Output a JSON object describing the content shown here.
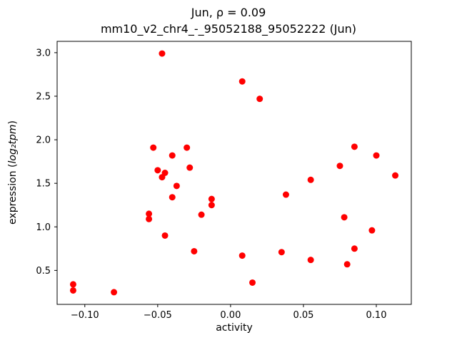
{
  "chart_data": {
    "type": "scatter",
    "title": "Jun, ρ = 0.09",
    "subtitle": "mm10_v2_chr4_-_95052188_95052222 (Jun)",
    "xlabel": "activity",
    "ylabel_prefix": "expression (",
    "ylabel_math": "log₂tpm",
    "ylabel_suffix": ")",
    "marker_color": "#ff0000",
    "xlim": [
      -0.119,
      0.124
    ],
    "ylim": [
      0.11,
      3.13
    ],
    "xticks": [
      -0.1,
      -0.05,
      0.0,
      0.05,
      0.1
    ],
    "xtick_labels": [
      "−0.10",
      "−0.05",
      "0.00",
      "0.05",
      "0.10"
    ],
    "yticks": [
      0.5,
      1.0,
      1.5,
      2.0,
      2.5,
      3.0
    ],
    "ytick_labels": [
      "0.5",
      "1.0",
      "1.5",
      "2.0",
      "2.5",
      "3.0"
    ],
    "x": [
      -0.108,
      -0.108,
      -0.08,
      -0.056,
      -0.056,
      -0.053,
      -0.05,
      -0.047,
      -0.047,
      -0.045,
      -0.045,
      -0.04,
      -0.04,
      -0.037,
      -0.03,
      -0.028,
      -0.025,
      -0.02,
      -0.013,
      -0.013,
      0.008,
      0.008,
      0.015,
      0.02,
      0.035,
      0.038,
      0.055,
      0.055,
      0.075,
      0.078,
      0.08,
      0.085,
      0.085,
      0.097,
      0.1,
      0.113
    ],
    "y": [
      0.34,
      0.27,
      0.25,
      1.15,
      1.09,
      1.91,
      1.65,
      2.99,
      1.57,
      1.62,
      0.9,
      1.82,
      1.34,
      1.47,
      1.91,
      1.68,
      0.72,
      1.14,
      1.32,
      1.25,
      2.67,
      0.67,
      0.36,
      2.47,
      0.71,
      1.37,
      1.54,
      0.62,
      1.7,
      1.11,
      0.57,
      1.92,
      0.75,
      0.96,
      1.82,
      1.59
    ],
    "grid": false,
    "legend": "none"
  }
}
